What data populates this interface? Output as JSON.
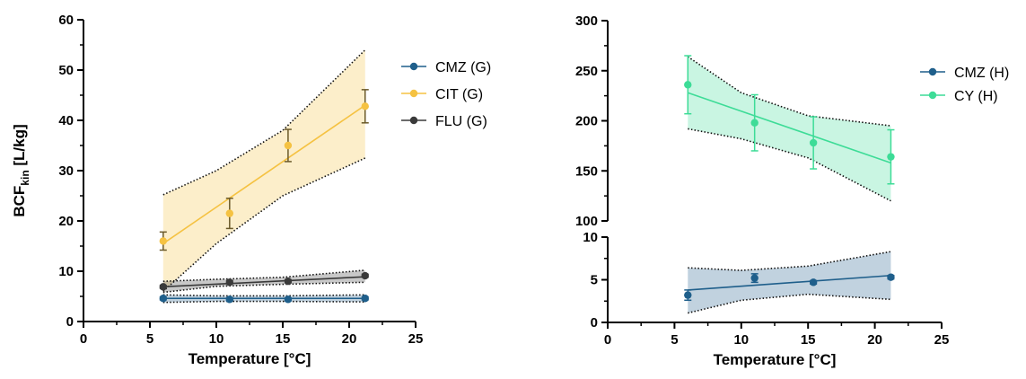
{
  "colors": {
    "CMZ": "#1f5f8b",
    "CIT": "#f5c242",
    "FLU": "#3a3a3a",
    "CY": "#3ddc97"
  },
  "chart_data": [
    {
      "type": "line",
      "panel": "left",
      "ylabel_main": "BCF",
      "ylabel_sub": "kin",
      "ylabel_unit": " [L/kg]",
      "xlabel": "Temperature [°C]",
      "xlim": [
        0,
        25
      ],
      "xticks": [
        0,
        5,
        10,
        15,
        20,
        25
      ],
      "ylim": [
        0,
        60
      ],
      "yticks": [
        0,
        10,
        20,
        30,
        40,
        50,
        60
      ],
      "legend_position": "right",
      "series": [
        {
          "name": "CMZ (G)",
          "color_key": "CMZ",
          "x": [
            6,
            11,
            15.4,
            21.2
          ],
          "y": [
            4.6,
            4.4,
            4.4,
            4.6
          ],
          "yerr": [
            0.3,
            0.3,
            0.3,
            0.3
          ],
          "fit": {
            "x": [
              6,
              21.2
            ],
            "y": [
              4.6,
              4.6
            ]
          },
          "ci": {
            "x": [
              6,
              10,
              15,
              21.2
            ],
            "lower": [
              3.8,
              4.0,
              4.0,
              3.9
            ],
            "upper": [
              5.3,
              5.1,
              5.1,
              5.3
            ]
          }
        },
        {
          "name": "CIT (G)",
          "color_key": "CIT",
          "x": [
            6,
            11,
            15.4,
            21.2
          ],
          "y": [
            16,
            21.5,
            35,
            42.8
          ],
          "yerr": [
            1.8,
            3.0,
            3.2,
            3.3
          ],
          "fit": {
            "x": [
              6,
              21.2
            ],
            "y": [
              15.5,
              43
            ]
          },
          "ci": {
            "x": [
              6,
              10,
              15,
              21.2
            ],
            "lower": [
              6.0,
              15.5,
              25.0,
              32.5
            ],
            "upper": [
              25.2,
              30.0,
              38.0,
              54.0
            ]
          }
        },
        {
          "name": "FLU (G)",
          "color_key": "FLU",
          "x": [
            6,
            11,
            15.4,
            21.2
          ],
          "y": [
            6.9,
            7.8,
            8.0,
            9.1
          ],
          "yerr": [
            0.3,
            0.3,
            0.3,
            0.3
          ],
          "fit": {
            "x": [
              6,
              21.2
            ],
            "y": [
              6.9,
              8.9
            ]
          },
          "ci": {
            "x": [
              6,
              10,
              15,
              21.2
            ],
            "lower": [
              5.8,
              7.0,
              7.4,
              7.8
            ],
            "upper": [
              8.0,
              8.4,
              8.8,
              10.2
            ]
          }
        }
      ]
    },
    {
      "type": "line",
      "panel": "right",
      "xlabel": "Temperature [°C]",
      "xlim": [
        0,
        25
      ],
      "xticks": [
        0,
        5,
        10,
        15,
        20,
        25
      ],
      "y_break": true,
      "ylim_upper": [
        100,
        300
      ],
      "yticks_upper": [
        100,
        150,
        200,
        250,
        300
      ],
      "ylim_lower": [
        0,
        10
      ],
      "yticks_lower": [
        0,
        5,
        10
      ],
      "legend_position": "right",
      "series": [
        {
          "name": "CMZ (H)",
          "color_key": "CMZ",
          "segment": "lower",
          "x": [
            6,
            11,
            15.4,
            21.2
          ],
          "y": [
            3.2,
            5.2,
            4.7,
            5.3
          ],
          "yerr": [
            0.6,
            0.5,
            0.2,
            0.2
          ],
          "fit": {
            "x": [
              6,
              21.2
            ],
            "y": [
              3.8,
              5.5
            ]
          },
          "ci": {
            "x": [
              6,
              10,
              15,
              21.2
            ],
            "lower": [
              1.1,
              2.6,
              3.3,
              2.7
            ],
            "upper": [
              6.4,
              6.1,
              6.6,
              8.3
            ]
          }
        },
        {
          "name": "CY (H)",
          "color_key": "CY",
          "segment": "upper",
          "x": [
            6,
            11,
            15.4,
            21.2
          ],
          "y": [
            236,
            198,
            178,
            164
          ],
          "yerr": [
            29,
            28,
            26,
            27
          ],
          "fit": {
            "x": [
              6,
              21.2
            ],
            "y": [
              228,
              158
            ]
          },
          "ci": {
            "x": [
              6,
              10,
              15,
              21.2
            ],
            "lower": [
              192,
              182,
              163,
              120
            ],
            "upper": [
              264,
              228,
              205,
              195
            ]
          }
        }
      ]
    }
  ]
}
